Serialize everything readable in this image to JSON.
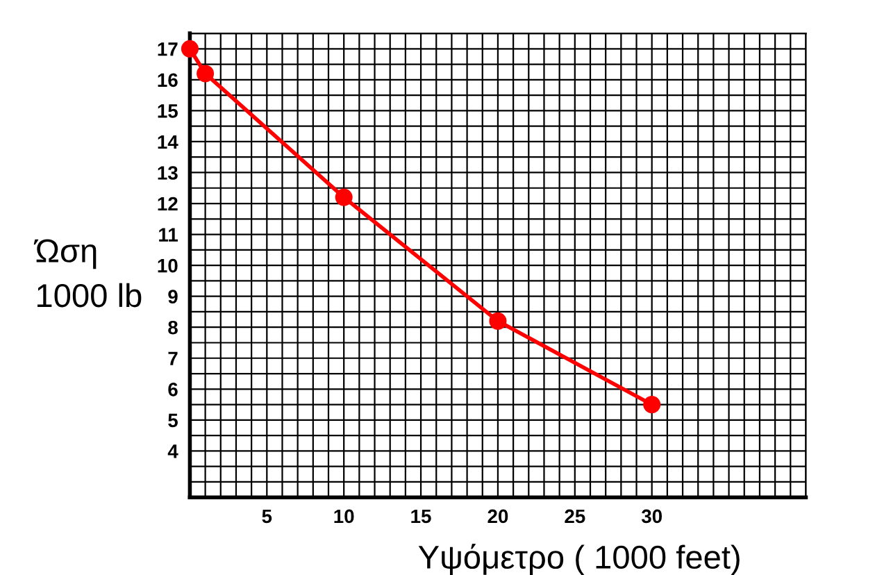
{
  "chart_data": {
    "type": "line",
    "xlabel": "Υψόμετρο ( 1000 feet)",
    "ylabel": "Ώση\n1000 lb",
    "x": [
      0,
      1,
      10,
      20,
      30
    ],
    "series": [
      {
        "color": "#ff0000",
        "values": [
          17,
          16.2,
          12.2,
          8.2,
          5.5
        ]
      }
    ],
    "xlim": [
      0,
      40
    ],
    "ylim": [
      2.5,
      17.5
    ],
    "xticks": [
      5,
      10,
      15,
      20,
      25,
      30
    ],
    "yticks": [
      4,
      5,
      6,
      7,
      8,
      9,
      10,
      11,
      12,
      13,
      14,
      15,
      16,
      17
    ],
    "grid": true,
    "marker": "circle",
    "line_style": "solid"
  }
}
